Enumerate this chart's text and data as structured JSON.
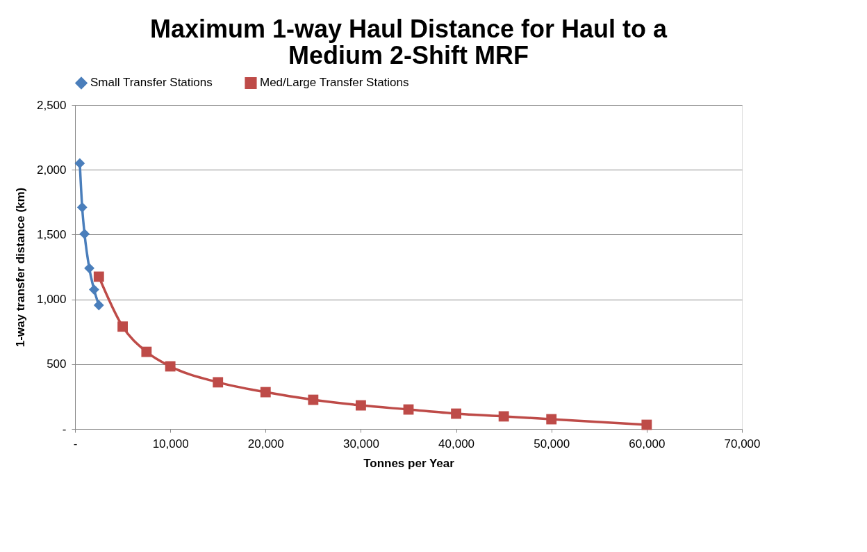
{
  "chart_data": {
    "type": "line",
    "title": [
      "Maximum 1-way Haul Distance for Haul to a",
      "Medium 2-Shift MRF"
    ],
    "xlabel": "Tonnes per Year",
    "ylabel": "1-way transfer distance (km)",
    "xlim": [
      0,
      70000
    ],
    "xticks": [
      {
        "value": 0,
        "label": "-"
      },
      {
        "value": 10000,
        "label": "10,000"
      },
      {
        "value": 20000,
        "label": "20,000"
      },
      {
        "value": 30000,
        "label": "30,000"
      },
      {
        "value": 40000,
        "label": "40,000"
      },
      {
        "value": 50000,
        "label": "50,000"
      },
      {
        "value": 60000,
        "label": "60,000"
      },
      {
        "value": 70000,
        "label": "70,000"
      }
    ],
    "ylim": [
      0,
      2500
    ],
    "yticks": [
      {
        "value": 0,
        "label": "-"
      },
      {
        "value": 500,
        "label": "500"
      },
      {
        "value": 1000,
        "label": "1,000"
      },
      {
        "value": 1500,
        "label": "1,500"
      },
      {
        "value": 2000,
        "label": "2,000"
      },
      {
        "value": 2500,
        "label": "2,500"
      }
    ],
    "grid": "y",
    "legend": "top",
    "line_style": "solid",
    "series": [
      {
        "name": "Small Transfer Stations",
        "color": "#4a7ebb",
        "marker": "diamond",
        "x": [
          500,
          750,
          1000,
          1500,
          2000,
          2500
        ],
        "values": [
          2050,
          1710,
          1505,
          1240,
          1075,
          955
        ]
      },
      {
        "name": "Med/Large Transfer Stations",
        "color": "#be4b48",
        "marker": "square",
        "x": [
          2500,
          5000,
          7500,
          10000,
          15000,
          20000,
          25000,
          30000,
          35000,
          40000,
          45000,
          50000,
          60000
        ],
        "values": [
          1175,
          790,
          595,
          483,
          360,
          284,
          225,
          182,
          150,
          118,
          97,
          75,
          32
        ]
      }
    ]
  }
}
